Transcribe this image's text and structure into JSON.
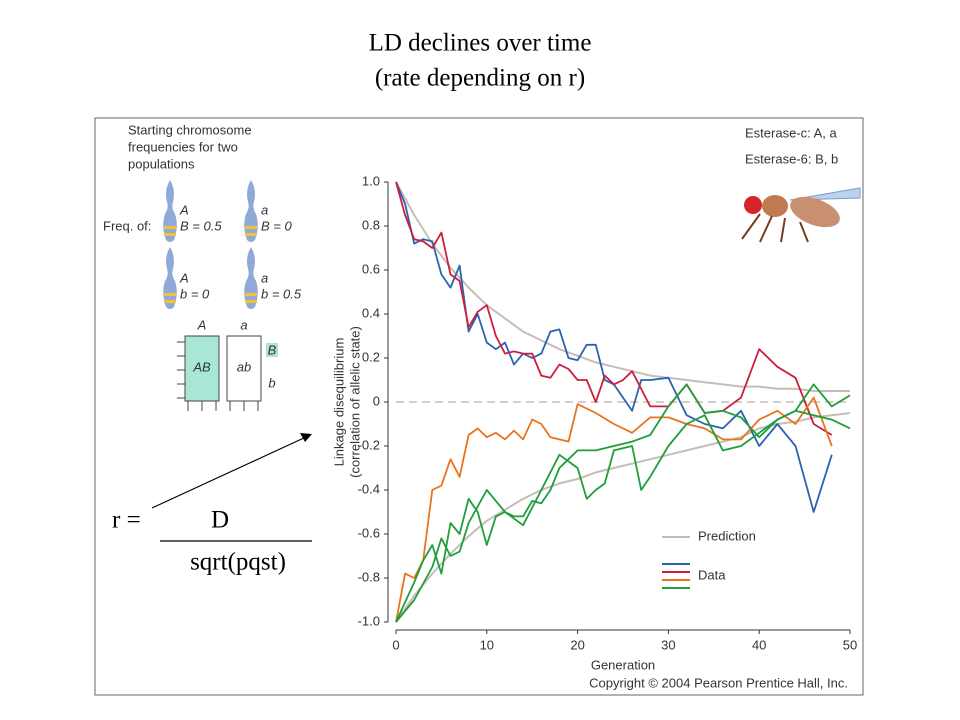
{
  "chart_data": {
    "type": "line",
    "title": "LD declines over time",
    "subtitle": "(rate depending on r)",
    "xlabel": "Generation",
    "ylabel": [
      "Linkage disequilibrium",
      "(correlation of allelic state)"
    ],
    "xlim": [
      0,
      50
    ],
    "ylim": [
      -1.0,
      1.0
    ],
    "xticks": [
      0,
      10,
      20,
      30,
      40,
      50
    ],
    "yticks": [
      {
        "value": 1.0,
        "label": "1.0"
      },
      {
        "value": 0.8,
        "label": "0.8"
      },
      {
        "value": 0.6,
        "label": "0.6"
      },
      {
        "value": 0.4,
        "label": "0.4"
      },
      {
        "value": 0.2,
        "label": "0.2"
      },
      0,
      {
        "value": -0.2,
        "label": "-0.2"
      },
      {
        "value": -0.4,
        "label": "-0.4"
      },
      {
        "value": -0.6,
        "label": "-0.6"
      },
      {
        "value": -0.8,
        "label": "-0.8"
      },
      {
        "value": -1.0,
        "label": "-1.0"
      }
    ],
    "series": [
      {
        "name": "Prediction",
        "color": "#c9bcb6",
        "x": [
          0,
          2,
          4,
          6,
          8,
          10,
          12,
          14,
          16,
          18,
          20,
          22,
          24,
          26,
          28,
          30,
          32,
          34,
          36,
          38,
          40,
          42,
          44,
          46,
          48,
          50
        ],
        "values": [
          1.0,
          0.85,
          0.72,
          0.61,
          0.52,
          0.44,
          0.38,
          0.32,
          0.28,
          0.24,
          0.21,
          0.18,
          0.16,
          0.14,
          0.12,
          0.11,
          0.1,
          0.09,
          0.08,
          0.07,
          0.07,
          0.06,
          0.06,
          0.05,
          0.05,
          0.05
        ]
      },
      {
        "name": "Prediction",
        "color": "#c9bcb6",
        "x": [
          0,
          2,
          4,
          6,
          8,
          10,
          12,
          14,
          16,
          18,
          20,
          22,
          24,
          26,
          28,
          30,
          32,
          34,
          36,
          38,
          40,
          42,
          44,
          46,
          48,
          50
        ],
        "values": [
          -1.0,
          -0.88,
          -0.78,
          -0.69,
          -0.61,
          -0.54,
          -0.49,
          -0.44,
          -0.4,
          -0.37,
          -0.35,
          -0.32,
          -0.3,
          -0.28,
          -0.26,
          -0.24,
          -0.22,
          -0.2,
          -0.18,
          -0.16,
          -0.12,
          -0.1,
          -0.09,
          -0.07,
          -0.06,
          -0.05
        ]
      },
      {
        "name": "Data",
        "color": "#2b63b0",
        "x": [
          0,
          1,
          2,
          3,
          4,
          5,
          6,
          7,
          8,
          9,
          10,
          11,
          12,
          13,
          14,
          15,
          16,
          17,
          18,
          19,
          20,
          21,
          22,
          23,
          24,
          25,
          26,
          27,
          28,
          30,
          32,
          34,
          36,
          38,
          40,
          42,
          44,
          46,
          48
        ],
        "values": [
          1.0,
          0.9,
          0.72,
          0.74,
          0.73,
          0.58,
          0.52,
          0.62,
          0.32,
          0.4,
          0.27,
          0.24,
          0.27,
          0.17,
          0.22,
          0.2,
          0.22,
          0.32,
          0.33,
          0.2,
          0.19,
          0.26,
          0.26,
          0.1,
          0.08,
          0.02,
          -0.04,
          0.1,
          0.1,
          0.11,
          -0.06,
          -0.1,
          -0.12,
          -0.04,
          -0.2,
          -0.1,
          -0.2,
          -0.5,
          -0.24
        ]
      },
      {
        "name": "Data",
        "color": "#cc1f3c",
        "x": [
          0,
          1,
          2,
          3,
          4,
          5,
          6,
          7,
          8,
          9,
          10,
          11,
          12,
          13,
          14,
          15,
          16,
          17,
          18,
          19,
          20,
          21,
          22,
          23,
          24,
          25,
          26,
          28,
          30,
          32,
          34,
          36,
          38,
          40,
          42,
          44,
          46,
          48
        ],
        "values": [
          1.0,
          0.85,
          0.74,
          0.73,
          0.7,
          0.77,
          0.58,
          0.55,
          0.34,
          0.41,
          0.44,
          0.3,
          0.22,
          0.23,
          0.22,
          0.22,
          0.12,
          0.11,
          0.17,
          0.15,
          0.1,
          0.1,
          0.0,
          0.12,
          0.08,
          0.1,
          0.14,
          -0.02,
          -0.02,
          0.08,
          -0.05,
          -0.04,
          0.02,
          0.24,
          0.16,
          0.11,
          -0.1,
          -0.15
        ]
      },
      {
        "name": "Data",
        "color": "#e8741e",
        "x": [
          0,
          1,
          2,
          3,
          4,
          5,
          6,
          7,
          8,
          9,
          10,
          11,
          12,
          13,
          14,
          15,
          16,
          17,
          18,
          19,
          20,
          22,
          24,
          26,
          28,
          30,
          32,
          34,
          36,
          38,
          40,
          42,
          44,
          46,
          48
        ],
        "values": [
          -1.0,
          -0.78,
          -0.8,
          -0.72,
          -0.4,
          -0.38,
          -0.26,
          -0.34,
          -0.15,
          -0.12,
          -0.16,
          -0.14,
          -0.17,
          -0.13,
          -0.17,
          -0.08,
          -0.1,
          -0.16,
          -0.17,
          -0.18,
          -0.01,
          -0.05,
          -0.1,
          -0.14,
          -0.07,
          -0.07,
          -0.1,
          -0.12,
          -0.17,
          -0.17,
          -0.08,
          -0.04,
          -0.1,
          0.02,
          -0.2
        ]
      },
      {
        "name": "Data",
        "color": "#1f9e3a",
        "x": [
          0,
          2,
          3,
          4,
          5,
          6,
          7,
          8,
          9,
          10,
          11,
          12,
          13,
          14,
          15,
          16,
          17,
          18,
          19,
          20,
          22,
          24,
          26,
          28,
          30,
          32,
          34,
          36,
          38,
          40,
          42,
          44,
          46,
          48,
          50
        ],
        "values": [
          -1.0,
          -0.82,
          -0.72,
          -0.65,
          -0.78,
          -0.55,
          -0.6,
          -0.44,
          -0.5,
          -0.65,
          -0.52,
          -0.5,
          -0.52,
          -0.52,
          -0.45,
          -0.46,
          -0.4,
          -0.3,
          -0.26,
          -0.22,
          -0.22,
          -0.2,
          -0.18,
          -0.15,
          -0.02,
          0.08,
          -0.05,
          -0.04,
          -0.07,
          -0.16,
          -0.08,
          -0.04,
          -0.06,
          -0.08,
          -0.12
        ]
      },
      {
        "name": "Data",
        "color": "#1f9e3a",
        "x": [
          0,
          2,
          4,
          5,
          6,
          7,
          8,
          10,
          12,
          14,
          16,
          18,
          20,
          21,
          22,
          23,
          24,
          26,
          27,
          28,
          30,
          32,
          34,
          36,
          38,
          40,
          42,
          44,
          46,
          48,
          50
        ],
        "values": [
          -1.0,
          -0.9,
          -0.75,
          -0.62,
          -0.7,
          -0.68,
          -0.55,
          -0.4,
          -0.5,
          -0.56,
          -0.4,
          -0.24,
          -0.3,
          -0.44,
          -0.4,
          -0.37,
          -0.22,
          -0.2,
          -0.4,
          -0.34,
          -0.2,
          -0.1,
          -0.06,
          -0.22,
          -0.2,
          -0.14,
          -0.08,
          -0.04,
          0.08,
          -0.02,
          0.03
        ]
      }
    ],
    "annotations": {
      "loci": [
        "Esterase-c: A, a",
        "Esterase-6: B, b"
      ],
      "inset_title": [
        "Starting chromosome",
        "frequencies for two",
        "populations"
      ],
      "freq_label": "Freq. of:",
      "chromosomes": [
        [
          "A",
          "B = 0.5"
        ],
        [
          "a",
          "B = 0"
        ],
        [
          "A",
          "b = 0"
        ],
        [
          "a",
          "b = 0.5"
        ]
      ],
      "grid_labels": [
        "A",
        "a",
        "B",
        "AB",
        "ab",
        "b"
      ],
      "formula": {
        "left": "r =",
        "numerator": "D",
        "denominator": "sqrt(pqst)"
      },
      "copyright": "Copyright © 2004 Pearson Prentice Hall, Inc."
    }
  }
}
